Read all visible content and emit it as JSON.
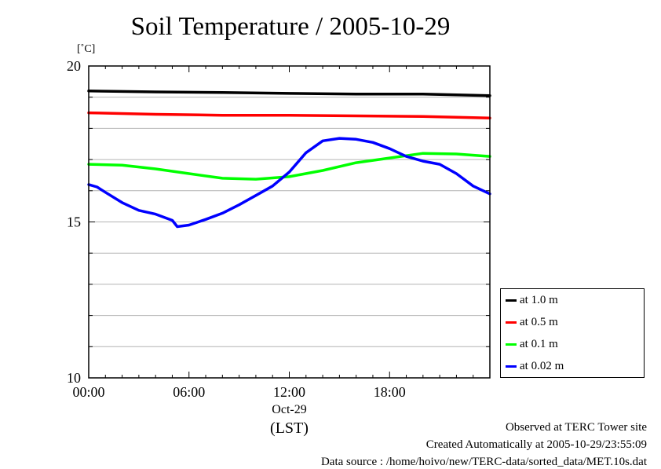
{
  "chart_data": {
    "type": "line",
    "title": "Soil Temperature / 2005-10-29",
    "ylabel": "[˚C]",
    "xlabel": "(LST)",
    "date_label": "Oct-29",
    "xlim": [
      0,
      24
    ],
    "ylim": [
      10,
      20
    ],
    "y_ticks": [
      10,
      15,
      20
    ],
    "x_ticks": [
      0,
      6,
      12,
      18
    ],
    "x_tick_labels": [
      "00:00",
      "06:00",
      "12:00",
      "18:00"
    ],
    "grid": true,
    "legend_position": "right-bottom",
    "series": [
      {
        "name": "at 1.0 m",
        "color": "#000000",
        "points": [
          [
            0,
            19.2
          ],
          [
            4,
            19.17
          ],
          [
            8,
            19.15
          ],
          [
            12,
            19.12
          ],
          [
            16,
            19.1
          ],
          [
            20,
            19.1
          ],
          [
            24,
            19.05
          ]
        ]
      },
      {
        "name": "at 0.5 m",
        "color": "#ff0000",
        "points": [
          [
            0,
            18.5
          ],
          [
            4,
            18.45
          ],
          [
            8,
            18.42
          ],
          [
            12,
            18.42
          ],
          [
            16,
            18.4
          ],
          [
            20,
            18.38
          ],
          [
            24,
            18.33
          ]
        ]
      },
      {
        "name": "at 0.1 m",
        "color": "#00ff00",
        "points": [
          [
            0,
            16.85
          ],
          [
            2,
            16.82
          ],
          [
            4,
            16.7
          ],
          [
            6,
            16.55
          ],
          [
            8,
            16.4
          ],
          [
            10,
            16.37
          ],
          [
            12,
            16.45
          ],
          [
            14,
            16.65
          ],
          [
            16,
            16.9
          ],
          [
            18,
            17.05
          ],
          [
            20,
            17.2
          ],
          [
            22,
            17.18
          ],
          [
            24,
            17.1
          ]
        ]
      },
      {
        "name": "at 0.02 m",
        "color": "#0000ff",
        "points": [
          [
            0,
            16.2
          ],
          [
            0.5,
            16.12
          ],
          [
            1,
            15.95
          ],
          [
            2,
            15.62
          ],
          [
            3,
            15.37
          ],
          [
            4,
            15.25
          ],
          [
            5,
            15.05
          ],
          [
            5.3,
            14.85
          ],
          [
            6,
            14.9
          ],
          [
            7,
            15.08
          ],
          [
            8,
            15.28
          ],
          [
            9,
            15.55
          ],
          [
            10,
            15.85
          ],
          [
            11,
            16.15
          ],
          [
            12,
            16.6
          ],
          [
            13,
            17.22
          ],
          [
            14,
            17.6
          ],
          [
            15,
            17.68
          ],
          [
            16,
            17.65
          ],
          [
            17,
            17.55
          ],
          [
            18,
            17.35
          ],
          [
            19,
            17.1
          ],
          [
            20,
            16.95
          ],
          [
            21,
            16.85
          ],
          [
            22,
            16.55
          ],
          [
            23,
            16.15
          ],
          [
            24,
            15.9
          ]
        ]
      }
    ]
  },
  "footer": {
    "line1": "Observed at TERC Tower site",
    "line2": "Created Automatically at 2005-10-29/23:55:09",
    "line3": "Data source : /home/hoivo/new/TERC-data/sorted_data/MET.10s.dat"
  }
}
